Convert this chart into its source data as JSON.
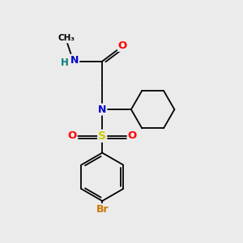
{
  "bg_color": "#ebebeb",
  "atom_colors": {
    "C": "#000000",
    "N": "#0000cc",
    "O": "#ff0000",
    "S": "#cccc00",
    "Br": "#cc7700",
    "H": "#008080"
  },
  "bond_color": "#000000",
  "bond_lw": 1.3,
  "figsize": [
    3.0,
    3.0
  ],
  "dpi": 100
}
